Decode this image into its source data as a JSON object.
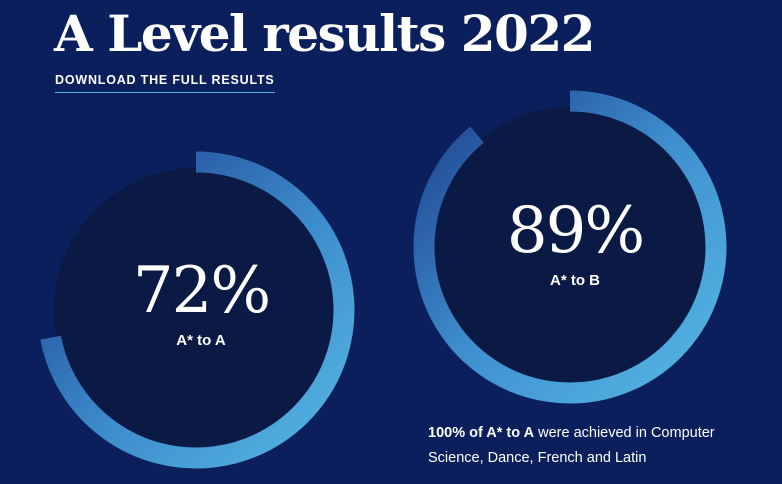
{
  "page": {
    "title": "A Level results 2022",
    "download_link": "DOWNLOAD THE FULL RESULTS"
  },
  "stats": [
    {
      "value": "72%",
      "label": "A* to A",
      "progress": 0.72
    },
    {
      "value": "89%",
      "label": "A* to B",
      "progress": 0.89
    }
  ],
  "note": {
    "highlight": "100% of A* to A",
    "text": " were achieved in Computer Science, Dance, French and Latin"
  },
  "colors": {
    "background": "#0a1f5c",
    "ring_inner": "#0b1a45",
    "ring_dark": "#1d3f8c",
    "ring_light": "#56b8e4"
  }
}
